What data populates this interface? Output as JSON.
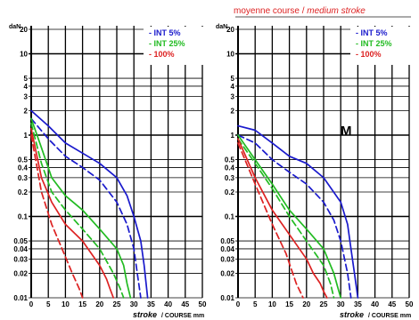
{
  "chart_data": [
    {
      "type": "line",
      "title_fr": "",
      "title_en": "",
      "ylabel": "daN",
      "xlabel_italic": "stroke",
      "xlabel_caps": "/ COURSE mm",
      "yscale": "log",
      "xlim": [
        0,
        50
      ],
      "ylim": [
        0.01,
        20
      ],
      "xticks": [
        "0",
        "5",
        "10",
        "15",
        "20",
        "25",
        "30",
        "35",
        "40",
        "45",
        "50"
      ],
      "yticks": [
        {
          "v": 20,
          "label": "20"
        },
        {
          "v": 10,
          "label": "10"
        },
        {
          "v": 5,
          "label": "5"
        },
        {
          "v": 4,
          "label": "4"
        },
        {
          "v": 3,
          "label": "3"
        },
        {
          "v": 2,
          "label": "2"
        },
        {
          "v": 1,
          "label": "1"
        },
        {
          "v": 0.5,
          "label": "0.5"
        },
        {
          "v": 0.4,
          "label": "0.4"
        },
        {
          "v": 0.3,
          "label": "0.3"
        },
        {
          "v": 0.2,
          "label": "0.2"
        },
        {
          "v": 0.1,
          "label": "0.1"
        },
        {
          "v": 0.05,
          "label": "0.05"
        },
        {
          "v": 0.04,
          "label": "0.04"
        },
        {
          "v": 0.03,
          "label": "0.03"
        },
        {
          "v": 0.02,
          "label": "0.02"
        },
        {
          "v": 0.01,
          "label": "0.01"
        }
      ],
      "grid": true,
      "legend_position": "top-right",
      "panel_letter": "",
      "legend": [
        {
          "label": "- INT 5%",
          "color": "#1a1acc"
        },
        {
          "label": "- INT 25%",
          "color": "#22bb22"
        },
        {
          "label": "- 100%",
          "color": "#dd2222"
        }
      ],
      "series": [
        {
          "color": "#1a1acc",
          "dash": false,
          "x": [
            0,
            5,
            10,
            15,
            20,
            25,
            28,
            30,
            32,
            33,
            34
          ],
          "y": [
            2.0,
            1.3,
            0.8,
            0.6,
            0.45,
            0.3,
            0.18,
            0.1,
            0.05,
            0.025,
            0.01
          ]
        },
        {
          "color": "#1a1acc",
          "dash": true,
          "x": [
            0,
            5,
            10,
            15,
            20,
            25,
            28,
            30,
            31,
            32
          ],
          "y": [
            1.6,
            0.9,
            0.55,
            0.4,
            0.28,
            0.15,
            0.08,
            0.04,
            0.02,
            0.01
          ]
        },
        {
          "color": "#22bb22",
          "dash": false,
          "x": [
            0,
            3,
            6,
            10,
            15,
            20,
            25,
            27,
            28,
            29
          ],
          "y": [
            1.6,
            0.7,
            0.3,
            0.18,
            0.12,
            0.07,
            0.04,
            0.025,
            0.015,
            0.01
          ]
        },
        {
          "color": "#22bb22",
          "dash": true,
          "x": [
            0,
            3,
            6,
            10,
            15,
            20,
            24,
            26,
            27
          ],
          "y": [
            1.4,
            0.45,
            0.2,
            0.12,
            0.07,
            0.04,
            0.02,
            0.013,
            0.01
          ]
        },
        {
          "color": "#dd2222",
          "dash": false,
          "x": [
            0,
            3,
            6,
            10,
            15,
            20,
            22,
            23,
            24
          ],
          "y": [
            1.2,
            0.3,
            0.15,
            0.08,
            0.05,
            0.025,
            0.017,
            0.013,
            0.01
          ]
        },
        {
          "color": "#dd2222",
          "dash": true,
          "x": [
            0,
            3,
            6,
            9,
            12,
            14,
            15
          ],
          "y": [
            1.0,
            0.2,
            0.08,
            0.04,
            0.02,
            0.013,
            0.01
          ]
        }
      ]
    },
    {
      "type": "line",
      "title_fr": "moyenne course / ",
      "title_en": "medium stroke",
      "ylabel": "daN",
      "xlabel_italic": "stroke",
      "xlabel_caps": "/ COURSE mm",
      "yscale": "log",
      "xlim": [
        0,
        50
      ],
      "ylim": [
        0.01,
        20
      ],
      "xticks": [
        "0",
        "5",
        "10",
        "15",
        "20",
        "25",
        "30",
        "35",
        "40",
        "45",
        "50"
      ],
      "yticks": [
        {
          "v": 20,
          "label": "20"
        },
        {
          "v": 10,
          "label": "10"
        },
        {
          "v": 5,
          "label": "5"
        },
        {
          "v": 4,
          "label": "4"
        },
        {
          "v": 3,
          "label": "3"
        },
        {
          "v": 2,
          "label": "2"
        },
        {
          "v": 1,
          "label": "1"
        },
        {
          "v": 0.5,
          "label": "0.5"
        },
        {
          "v": 0.4,
          "label": "0.4"
        },
        {
          "v": 0.3,
          "label": "0.3"
        },
        {
          "v": 0.2,
          "label": "0.2"
        },
        {
          "v": 0.1,
          "label": "0.1"
        },
        {
          "v": 0.05,
          "label": "0.05"
        },
        {
          "v": 0.04,
          "label": "0.04"
        },
        {
          "v": 0.03,
          "label": "0.03"
        },
        {
          "v": 0.02,
          "label": "0.02"
        },
        {
          "v": 0.01,
          "label": "0.01"
        }
      ],
      "grid": true,
      "legend_position": "top-right",
      "panel_letter": "M",
      "legend": [
        {
          "label": "- INT 5%",
          "color": "#1a1acc"
        },
        {
          "label": "- INT 25%",
          "color": "#22bb22"
        },
        {
          "label": "- 100%",
          "color": "#dd2222"
        }
      ],
      "series": [
        {
          "color": "#1a1acc",
          "dash": false,
          "x": [
            0,
            5,
            10,
            15,
            20,
            25,
            30,
            32,
            33,
            34,
            35
          ],
          "y": [
            1.3,
            1.15,
            0.8,
            0.55,
            0.45,
            0.3,
            0.15,
            0.08,
            0.04,
            0.02,
            0.01
          ]
        },
        {
          "color": "#1a1acc",
          "dash": true,
          "x": [
            0,
            5,
            10,
            15,
            20,
            25,
            28,
            30,
            32,
            33
          ],
          "y": [
            1.0,
            0.8,
            0.5,
            0.35,
            0.25,
            0.15,
            0.09,
            0.05,
            0.02,
            0.01
          ]
        },
        {
          "color": "#22bb22",
          "dash": false,
          "x": [
            0,
            5,
            10,
            15,
            20,
            25,
            28,
            29,
            30
          ],
          "y": [
            1.0,
            0.5,
            0.25,
            0.12,
            0.07,
            0.04,
            0.02,
            0.014,
            0.01
          ]
        },
        {
          "color": "#22bb22",
          "dash": true,
          "x": [
            0,
            5,
            10,
            15,
            20,
            25,
            27,
            28
          ],
          "y": [
            0.9,
            0.45,
            0.22,
            0.1,
            0.05,
            0.025,
            0.015,
            0.01
          ]
        },
        {
          "color": "#dd2222",
          "dash": false,
          "x": [
            0,
            5,
            10,
            15,
            20,
            22,
            24,
            25,
            26
          ],
          "y": [
            0.9,
            0.3,
            0.12,
            0.06,
            0.03,
            0.02,
            0.015,
            0.012,
            0.01
          ]
        },
        {
          "color": "#dd2222",
          "dash": true,
          "x": [
            0,
            5,
            10,
            14,
            17,
            19
          ],
          "y": [
            0.8,
            0.25,
            0.08,
            0.035,
            0.015,
            0.01
          ]
        }
      ]
    }
  ]
}
